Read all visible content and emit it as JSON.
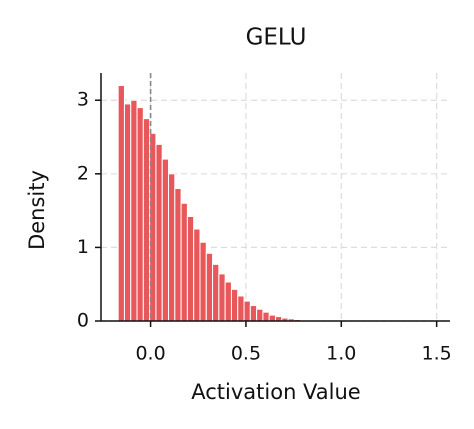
{
  "chart_data": {
    "type": "histogram",
    "title": "GELU",
    "x_label": "Activation Value",
    "y_label": "Density",
    "bins": [
      -0.17,
      -0.137,
      -0.104,
      -0.071,
      -0.038,
      -0.005,
      0.028,
      0.061,
      0.094,
      0.127,
      0.16,
      0.193,
      0.226,
      0.259,
      0.292,
      0.325,
      0.358,
      0.391,
      0.424,
      0.457,
      0.49,
      0.523,
      0.556,
      0.589,
      0.622,
      0.655,
      0.688,
      0.721,
      0.754,
      0.787,
      0.82
    ],
    "values": [
      3.2,
      2.95,
      3.0,
      2.9,
      2.75,
      2.55,
      2.4,
      2.2,
      2.0,
      1.8,
      1.6,
      1.42,
      1.25,
      1.07,
      0.92,
      0.77,
      0.64,
      0.53,
      0.43,
      0.34,
      0.27,
      0.21,
      0.16,
      0.12,
      0.08,
      0.06,
      0.04,
      0.03,
      0.02,
      0.01
    ],
    "color": "#e8585a",
    "vline": 0,
    "xlim": [
      -0.26,
      1.57
    ],
    "ylim": [
      0,
      3.37
    ],
    "xticks": [
      {
        "value": 0,
        "label": "0.0"
      },
      0.5,
      {
        "value": 1,
        "label": "1.0"
      },
      1.5
    ],
    "yticks": [
      0,
      1,
      2,
      3
    ],
    "grid": true
  }
}
